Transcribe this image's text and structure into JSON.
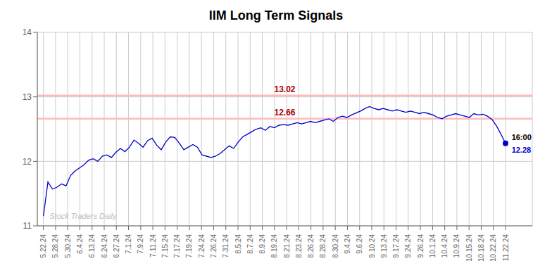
{
  "chart_data": {
    "type": "line",
    "title": "IIM Long Term Signals",
    "x": [
      0,
      0.3725,
      0.7451,
      1.1176,
      1.4902,
      1.8627,
      2.2353,
      2.6078,
      2.9804,
      3.3529,
      3.7255,
      4.098,
      4.4706,
      4.8431,
      5.2157,
      5.5882,
      5.9608,
      6.3333,
      6.7059,
      7.0784,
      7.451,
      7.8235,
      8.1961,
      8.5686,
      8.9412,
      9.3137,
      9.6863,
      10.0588,
      10.4314,
      10.8039,
      11.1765,
      11.549,
      11.9216,
      12.2941,
      12.6667,
      13.0392,
      13.4118,
      13.7843,
      14.1569,
      14.5294,
      14.902,
      15.2745,
      15.6471,
      16.0196,
      16.3922,
      16.7647,
      17.1373,
      17.5098,
      17.8824,
      18.2549,
      18.6275,
      19,
      19.3725,
      19.7451,
      20.1176,
      20.4902,
      20.8627,
      21.2353,
      21.6078,
      21.9804,
      22.3529,
      22.7255,
      23.098,
      23.4706,
      23.8431,
      24.2157,
      24.5882,
      24.9608,
      25.3333,
      25.7059,
      26.0784,
      26.451,
      26.8235,
      27.1961,
      27.5686,
      27.9412,
      28.3137,
      28.6863,
      29.0588,
      29.4314,
      29.8039,
      30.1765,
      30.549,
      30.9216,
      31.2941,
      31.6667,
      32.0392,
      32.4118,
      32.7843,
      33.1569,
      33.5294,
      33.902,
      34.2745,
      34.6471,
      35.0196,
      35.3922,
      35.7647,
      36.1373,
      36.5098,
      36.8824,
      37.2549,
      37.6275,
      38
    ],
    "values": [
      11.15,
      11.68,
      11.57,
      11.6,
      11.65,
      11.62,
      11.78,
      11.85,
      11.9,
      11.95,
      12.02,
      12.04,
      12.0,
      12.08,
      12.1,
      12.06,
      12.14,
      12.2,
      12.15,
      12.22,
      12.33,
      12.28,
      12.22,
      12.32,
      12.36,
      12.25,
      12.18,
      12.3,
      12.38,
      12.37,
      12.28,
      12.18,
      12.22,
      12.26,
      12.22,
      12.1,
      12.08,
      12.06,
      12.08,
      12.12,
      12.18,
      12.24,
      12.2,
      12.3,
      12.38,
      12.42,
      12.46,
      12.5,
      12.52,
      12.48,
      12.54,
      12.52,
      12.56,
      12.57,
      12.56,
      12.58,
      12.6,
      12.58,
      12.6,
      12.62,
      12.6,
      12.62,
      12.64,
      12.66,
      12.62,
      12.68,
      12.7,
      12.68,
      12.72,
      12.75,
      12.78,
      12.82,
      12.85,
      12.82,
      12.8,
      12.82,
      12.8,
      12.78,
      12.8,
      12.78,
      12.76,
      12.78,
      12.76,
      12.74,
      12.76,
      12.74,
      12.72,
      12.68,
      12.66,
      12.7,
      12.72,
      12.74,
      12.72,
      12.7,
      12.68,
      12.74,
      12.72,
      12.73,
      12.7,
      12.65,
      12.55,
      12.42,
      12.28
    ],
    "color": "#0000cc",
    "xlim": [
      -0.5,
      40.2
    ],
    "xticks": [
      {
        "value": 0,
        "label": "5.22.24"
      },
      {
        "value": 1,
        "label": "5.28.24"
      },
      {
        "value": 2,
        "label": "5.30.24"
      },
      {
        "value": 3,
        "label": "6.4.24"
      },
      {
        "value": 4,
        "label": "6.13.24"
      },
      {
        "value": 5,
        "label": "6.24.24"
      },
      {
        "value": 6,
        "label": "6.27.24"
      },
      {
        "value": 7,
        "label": "7.1.24"
      },
      {
        "value": 8,
        "label": "7.9.24"
      },
      {
        "value": 9,
        "label": "7.11.24"
      },
      {
        "value": 10,
        "label": "7.15.24"
      },
      {
        "value": 11,
        "label": "7.17.24"
      },
      {
        "value": 12,
        "label": "7.19.24"
      },
      {
        "value": 13,
        "label": "7.24.24"
      },
      {
        "value": 14,
        "label": "7.26.24"
      },
      {
        "value": 15,
        "label": "7.31.24"
      },
      {
        "value": 16,
        "label": "8.5.24"
      },
      {
        "value": 17,
        "label": "8.7.24"
      },
      {
        "value": 18,
        "label": "8.9.24"
      },
      {
        "value": 19,
        "label": "8.19.24"
      },
      {
        "value": 20,
        "label": "8.21.24"
      },
      {
        "value": 21,
        "label": "8.23.24"
      },
      {
        "value": 22,
        "label": "8.26.24"
      },
      {
        "value": 23,
        "label": "8.28.24"
      },
      {
        "value": 24,
        "label": "8.30.24"
      },
      {
        "value": 25,
        "label": "9.4.24"
      },
      {
        "value": 26,
        "label": "9.6.24"
      },
      {
        "value": 27,
        "label": "9.10.24"
      },
      {
        "value": 28,
        "label": "9.13.24"
      },
      {
        "value": 29,
        "label": "9.17.24"
      },
      {
        "value": 30,
        "label": "9.24.24"
      },
      {
        "value": 31,
        "label": "9.26.24"
      },
      {
        "value": 32,
        "label": "10.1.24"
      },
      {
        "value": 33,
        "label": "10.4.24"
      },
      {
        "value": 34,
        "label": "10.9.24"
      },
      {
        "value": 35,
        "label": "10.15.24"
      },
      {
        "value": 36,
        "label": "10.18.24"
      },
      {
        "value": 37,
        "label": "10.22.24"
      },
      {
        "value": 38,
        "label": "11.22.24"
      }
    ],
    "ylim": [
      11,
      14
    ],
    "yticks": [
      11,
      12,
      13,
      14
    ],
    "grid": true,
    "reference_lines": [
      {
        "y": 13.02,
        "label": "13.02",
        "color": "#ffbbbb",
        "label_color": "#aa0000"
      },
      {
        "y": 12.66,
        "label": "12.66",
        "color": "#ffbbbb",
        "label_color": "#aa0000"
      }
    ],
    "highlight": {
      "x": 38,
      "y": 12.28,
      "color": "#0000cc"
    },
    "annotations": [
      {
        "text": "16:00",
        "x": 38.5,
        "y": 12.28,
        "position": "above",
        "color": "#000000"
      },
      {
        "text": "12.28",
        "x": 38.5,
        "y": 12.28,
        "position": "below",
        "color": "#0000cc"
      },
      {
        "text": "Stock Traders Daily",
        "x": 0.5,
        "y": 11.05,
        "position": "above",
        "color": "#bbbbbb"
      }
    ]
  }
}
